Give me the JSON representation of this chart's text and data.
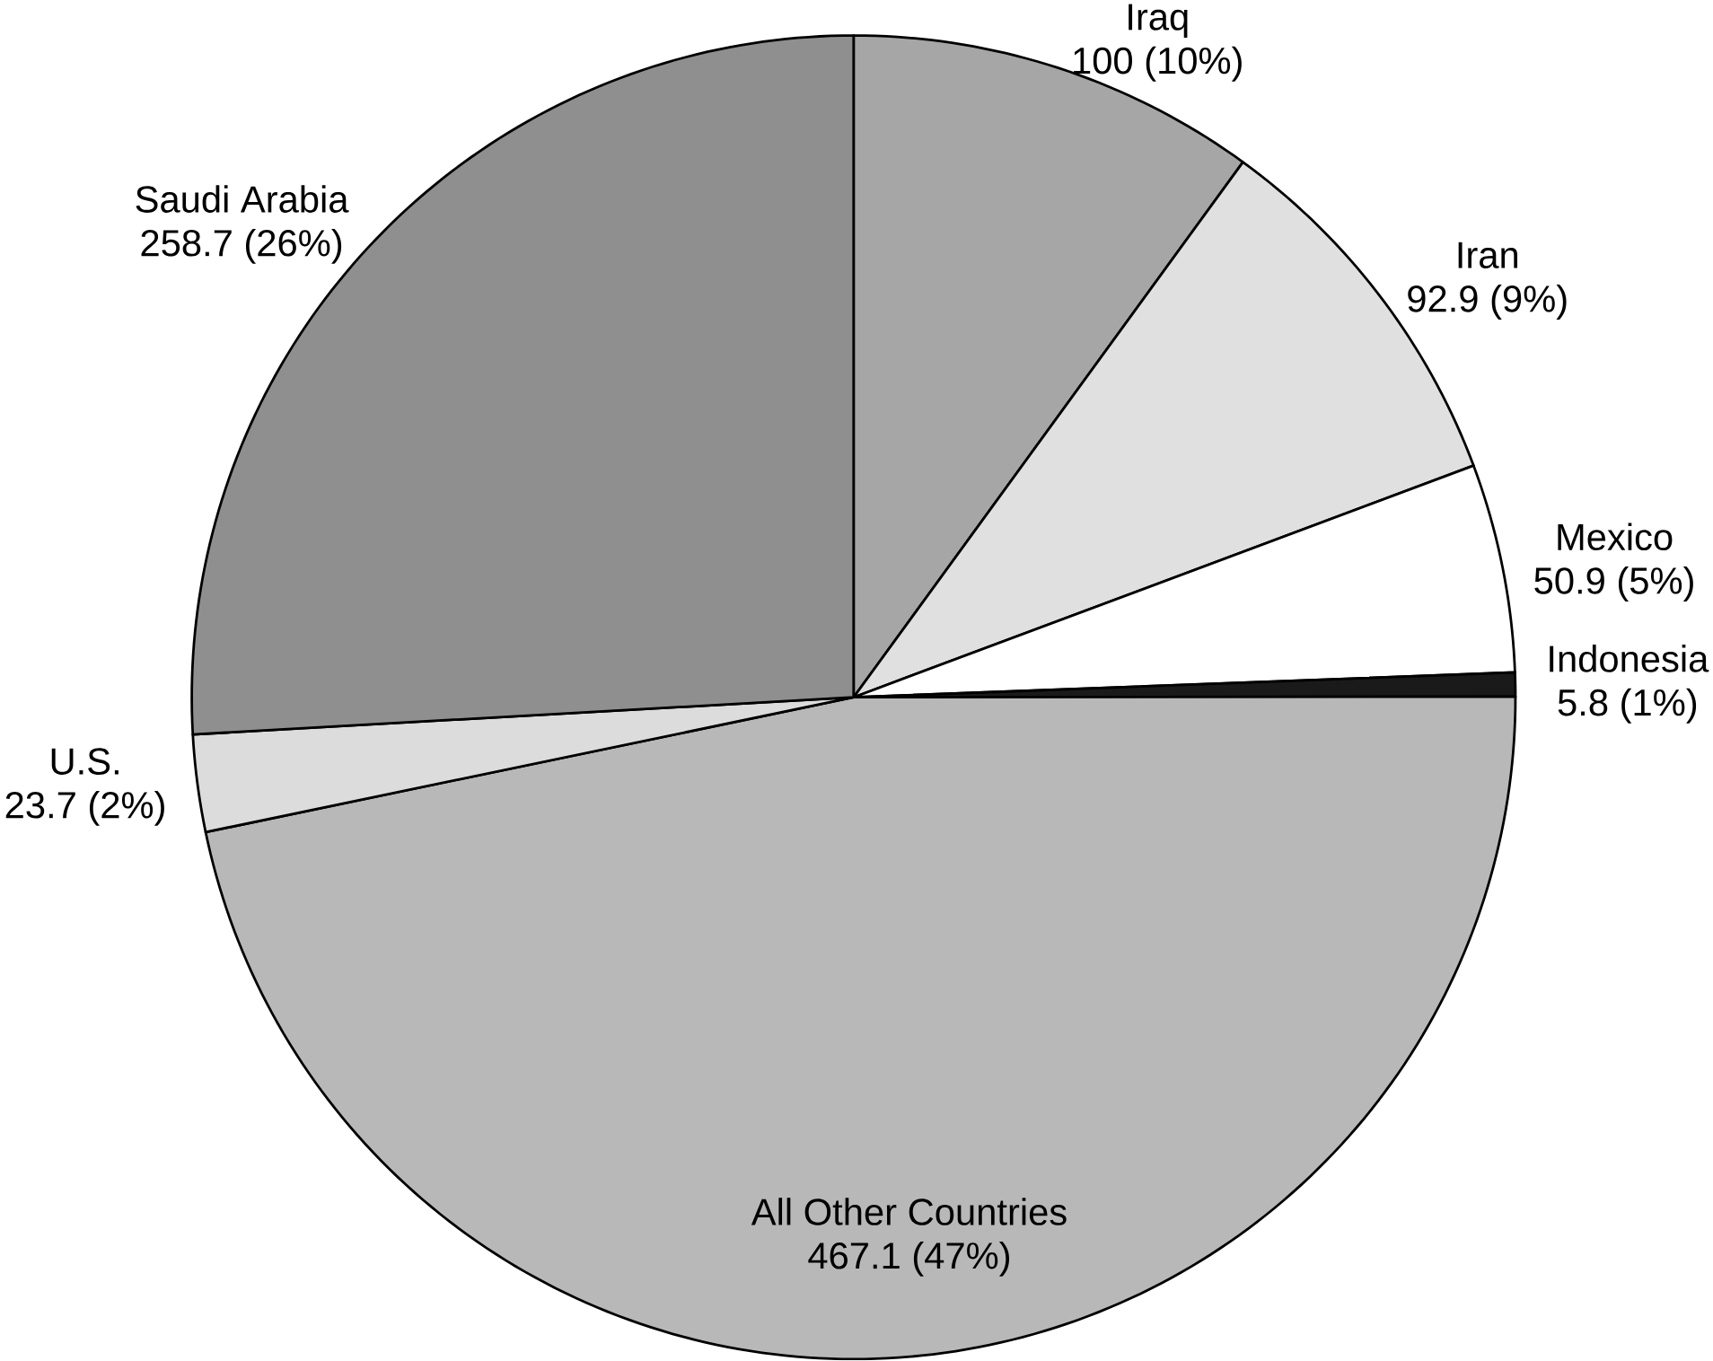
{
  "chart_data": {
    "type": "pie",
    "categories": [
      "Iraq",
      "Iran",
      "Mexico",
      "Indonesia",
      "All Other Countries",
      "U.S.",
      "Saudi Arabia"
    ],
    "values": [
      100,
      92.9,
      50.9,
      5.8,
      467.1,
      23.7,
      258.7
    ],
    "value_labels": [
      "100 (10%)",
      "92.9 (9%)",
      "50.9 (5%)",
      "5.8 (1%)",
      "467.1 (47%)",
      "23.7 (2%)",
      "258.7 (26%)"
    ],
    "colors": [
      "#a6a6a6",
      "#e0e0e0",
      "#ffffff",
      "#1a1a1a",
      "#b8b8b8",
      "#dcdcdc",
      "#8f8f8f"
    ]
  }
}
